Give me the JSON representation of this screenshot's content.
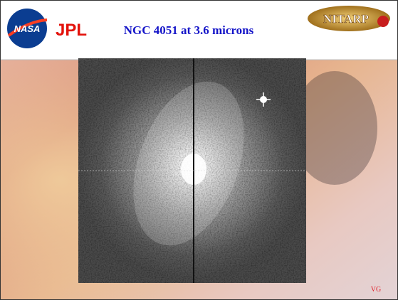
{
  "header": {
    "title": "NGC 4051 at 3.6 microns",
    "logos": [
      "NASA",
      "JPL",
      "NITARP"
    ]
  },
  "footer": {
    "initials": "VG"
  }
}
